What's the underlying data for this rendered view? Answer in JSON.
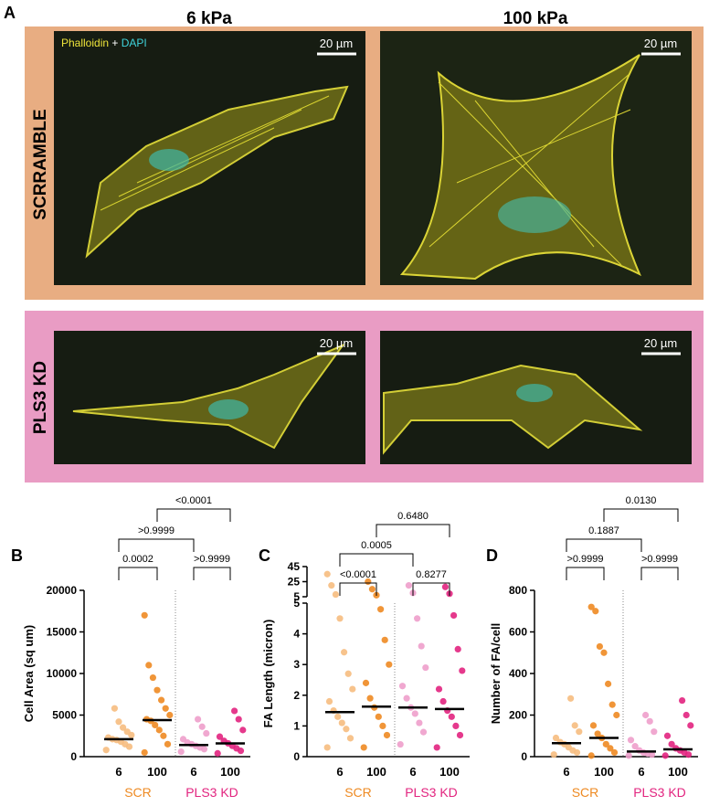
{
  "panel_a": {
    "label": "A",
    "columns": [
      "6 kPa",
      "100 kPa"
    ],
    "rows": [
      "SCRRAMBLE",
      "PLS3 KD"
    ],
    "stain": {
      "first": "Phalloidin",
      "joiner": "+",
      "second": "DAPI"
    },
    "scale_bar": "20 µm"
  },
  "chart_data": [
    {
      "type": "dot",
      "panel": "B",
      "ylabel": "Cell Area (sq um)",
      "categories": [
        "6",
        "100",
        "6",
        "100"
      ],
      "groups": [
        {
          "name": "SCR",
          "color": "#ee8a22"
        },
        {
          "name": "PLS3 KD",
          "color": "#e2247f"
        }
      ],
      "colors": [
        "#f6bd80",
        "#ee8a22",
        "#ee9ecb",
        "#e2247f"
      ],
      "points": [
        [
          800,
          1200,
          1500,
          1800,
          2000,
          2100,
          2300,
          2600,
          3000,
          3500,
          4200,
          5800
        ],
        [
          500,
          1500,
          2500,
          3200,
          3800,
          4300,
          4500,
          5000,
          5800,
          6800,
          8000,
          9500,
          11000,
          17000
        ],
        [
          600,
          900,
          1100,
          1300,
          1500,
          1700,
          2100,
          2800,
          3600,
          4500
        ],
        [
          400,
          700,
          1000,
          1300,
          1600,
          1900,
          2400,
          3200,
          4500,
          5500
        ]
      ],
      "medians": [
        2100,
        4400,
        1400,
        1600
      ],
      "ylim": [
        0,
        20000
      ],
      "yticks": [
        0,
        5000,
        10000,
        15000,
        20000
      ],
      "comparisons": [
        {
          "pair": [
            0,
            1
          ],
          "label": "0.0002"
        },
        {
          "pair": [
            2,
            3
          ],
          "label": ">0.9999"
        },
        {
          "pair": [
            0,
            2
          ],
          "label": ">0.9999"
        },
        {
          "pair": [
            1,
            3
          ],
          "label": "<0.0001"
        }
      ]
    },
    {
      "type": "dot",
      "panel": "C",
      "ylabel": "FA Length (micron)",
      "categories": [
        "6",
        "100",
        "6",
        "100"
      ],
      "groups": [
        {
          "name": "SCR",
          "color": "#ee8a22"
        },
        {
          "name": "PLS3 KD",
          "color": "#e2247f"
        }
      ],
      "colors": [
        "#f6bd80",
        "#ee8a22",
        "#ee9ecb",
        "#e2247f"
      ],
      "points": [
        [
          0.3,
          0.6,
          0.9,
          1.1,
          1.3,
          1.5,
          1.8,
          2.2,
          2.7,
          3.4,
          4.5,
          8,
          20,
          35
        ],
        [
          0.3,
          0.7,
          1.0,
          1.3,
          1.6,
          1.9,
          2.4,
          3.0,
          3.8,
          4.8,
          7,
          15,
          25
        ],
        [
          0.4,
          0.8,
          1.1,
          1.4,
          1.6,
          1.9,
          2.3,
          2.9,
          3.6,
          4.5,
          10,
          20
        ],
        [
          0.3,
          0.7,
          1.0,
          1.3,
          1.5,
          1.8,
          2.2,
          2.8,
          3.5,
          4.6,
          9,
          18
        ]
      ],
      "medians": [
        1.45,
        1.63,
        1.6,
        1.55
      ],
      "ylim": [
        0,
        5
      ],
      "yticks": [
        0,
        1,
        2,
        3,
        4,
        5
      ],
      "ylim_upper": [
        5,
        45
      ],
      "yticks_upper": [
        5,
        25,
        45
      ],
      "comparisons": [
        {
          "pair": [
            0,
            1
          ],
          "label": "<0.0001"
        },
        {
          "pair": [
            2,
            3
          ],
          "label": "0.8277"
        },
        {
          "pair": [
            0,
            2
          ],
          "label": "0.0005"
        },
        {
          "pair": [
            1,
            3
          ],
          "label": "0.6480"
        }
      ]
    },
    {
      "type": "dot",
      "panel": "D",
      "ylabel": "Number of FA/cell",
      "categories": [
        "6",
        "100",
        "6",
        "100"
      ],
      "groups": [
        {
          "name": "SCR",
          "color": "#ee8a22"
        },
        {
          "name": "PLS3 KD",
          "color": "#e2247f"
        }
      ],
      "colors": [
        "#f6bd80",
        "#ee8a22",
        "#ee9ecb",
        "#e2247f"
      ],
      "points": [
        [
          10,
          20,
          30,
          45,
          60,
          70,
          90,
          120,
          150,
          280
        ],
        [
          5,
          20,
          40,
          60,
          90,
          110,
          150,
          200,
          250,
          350,
          500,
          530,
          700,
          720
        ],
        [
          5,
          10,
          15,
          20,
          30,
          50,
          80,
          120,
          170,
          200
        ],
        [
          5,
          10,
          20,
          30,
          40,
          60,
          100,
          150,
          200,
          270
        ]
      ],
      "medians": [
        65,
        90,
        25,
        35
      ],
      "ylim": [
        0,
        800
      ],
      "yticks": [
        0,
        200,
        400,
        600,
        800
      ],
      "comparisons": [
        {
          "pair": [
            0,
            1
          ],
          "label": ">0.9999"
        },
        {
          "pair": [
            2,
            3
          ],
          "label": ">0.9999"
        },
        {
          "pair": [
            0,
            2
          ],
          "label": "0.1887"
        },
        {
          "pair": [
            1,
            3
          ],
          "label": "0.0130"
        }
      ]
    }
  ]
}
